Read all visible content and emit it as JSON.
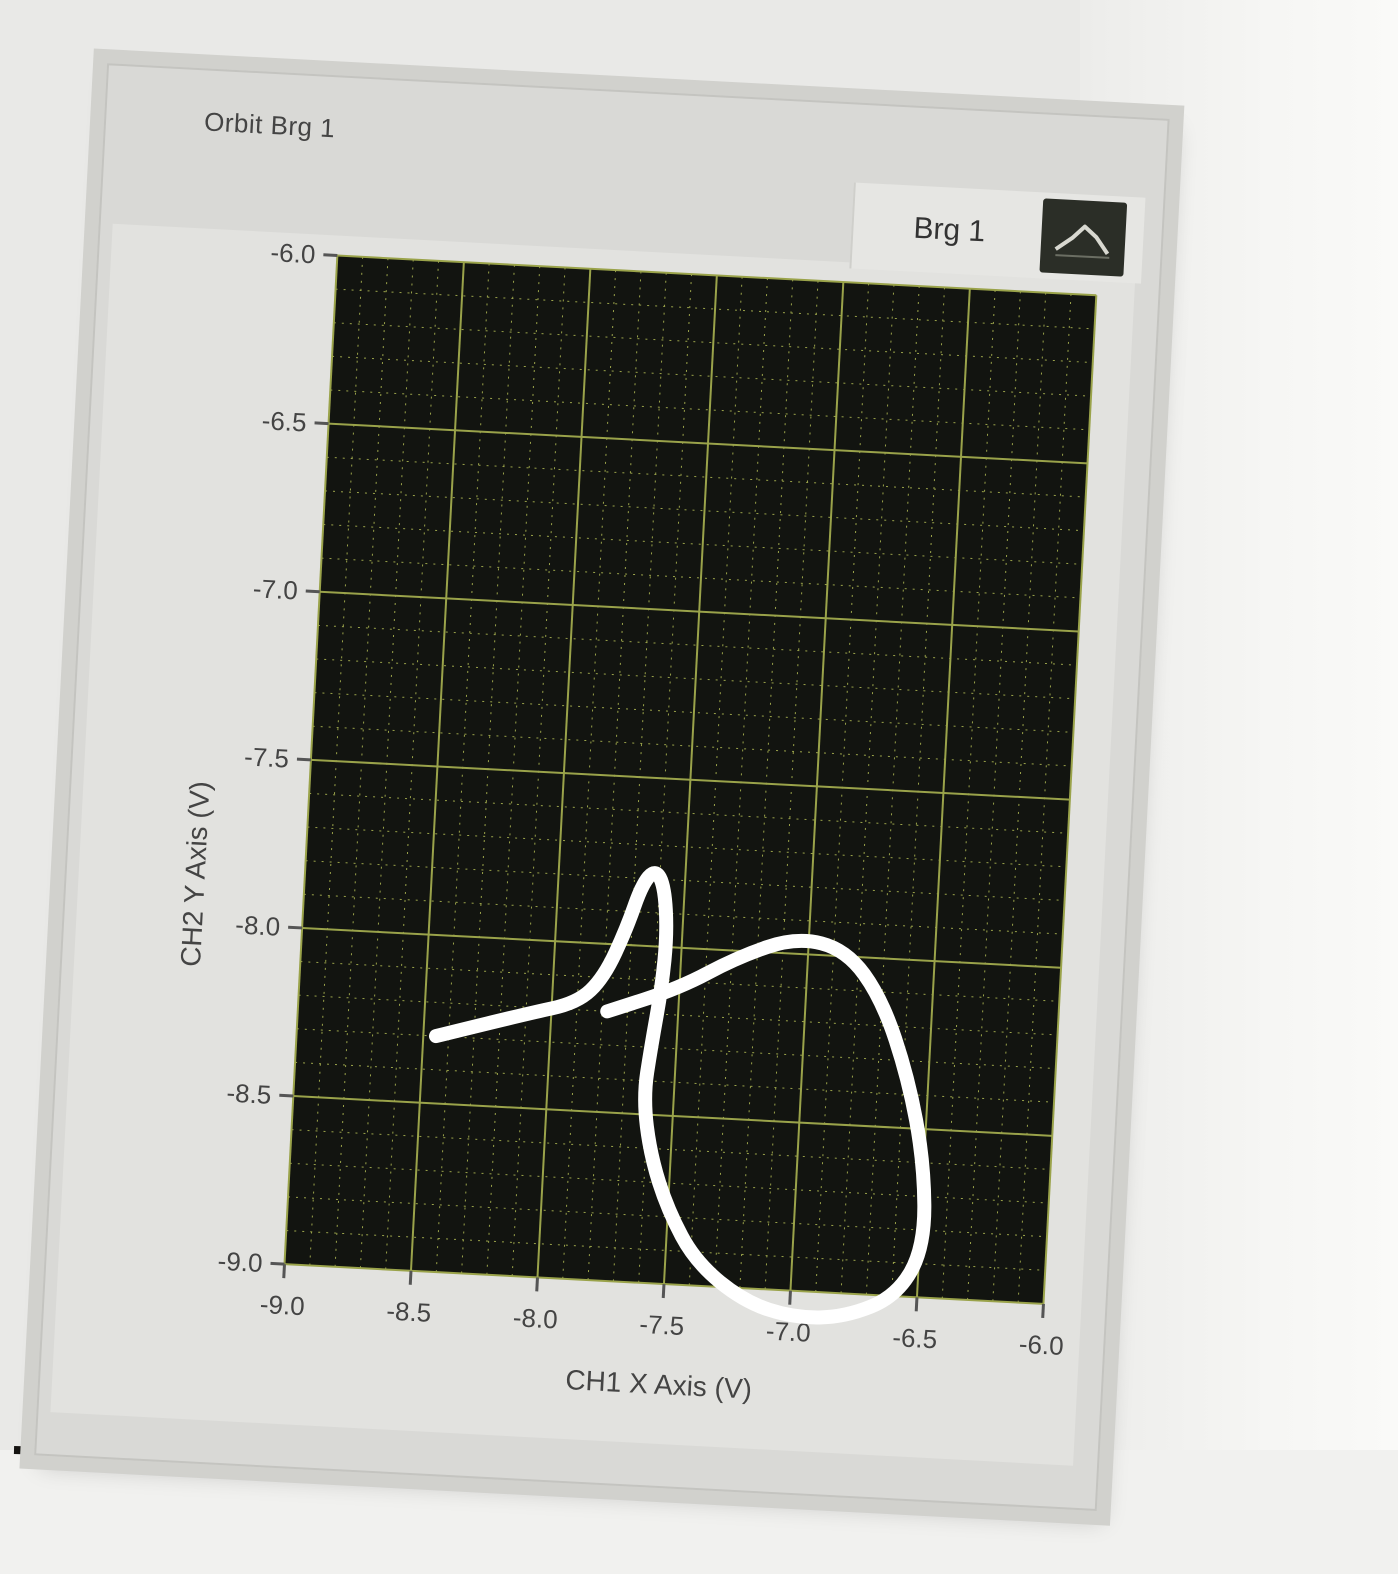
{
  "chart_data": {
    "type": "line",
    "title": "Orbit Brg 1",
    "xlabel": "CH1 X Axis (V)",
    "ylabel": "CH2 Y Axis (V)",
    "xlim": [
      -9.0,
      -6.0
    ],
    "ylim": [
      -9.0,
      -6.0
    ],
    "x_ticks": [
      "-9.0",
      "-8.5",
      "-8.0",
      "-7.5",
      "-7.0",
      "-6.5",
      "-6.0"
    ],
    "y_ticks": [
      "-6.0",
      "-6.5",
      "-7.0",
      "-7.5",
      "-8.0",
      "-8.5",
      "-9.0"
    ],
    "grid": true,
    "legend": "top-right",
    "colors": {
      "plot_background": "#121410",
      "grid": "#9aa34a",
      "trace": "#ffffff"
    },
    "series": [
      {
        "name": "Brg 1",
        "points": [
          [
            -8.45,
            -8.3
          ],
          [
            -8.1,
            -8.22
          ],
          [
            -7.9,
            -8.18
          ],
          [
            -7.8,
            -8.1
          ],
          [
            -7.72,
            -7.95
          ],
          [
            -7.67,
            -7.82
          ],
          [
            -7.62,
            -7.77
          ],
          [
            -7.58,
            -7.82
          ],
          [
            -7.56,
            -7.96
          ],
          [
            -7.57,
            -8.12
          ],
          [
            -7.6,
            -8.3
          ],
          [
            -7.62,
            -8.45
          ],
          [
            -7.58,
            -8.62
          ],
          [
            -7.5,
            -8.78
          ],
          [
            -7.38,
            -8.93
          ],
          [
            -7.18,
            -9.04
          ],
          [
            -6.98,
            -9.08
          ],
          [
            -6.78,
            -9.07
          ],
          [
            -6.58,
            -9.0
          ],
          [
            -6.48,
            -8.85
          ],
          [
            -6.5,
            -8.6
          ],
          [
            -6.58,
            -8.35
          ],
          [
            -6.7,
            -8.12
          ],
          [
            -6.85,
            -7.98
          ],
          [
            -7.05,
            -7.95
          ],
          [
            -7.28,
            -8.02
          ],
          [
            -7.5,
            -8.12
          ],
          [
            -7.78,
            -8.2
          ]
        ]
      }
    ]
  }
}
